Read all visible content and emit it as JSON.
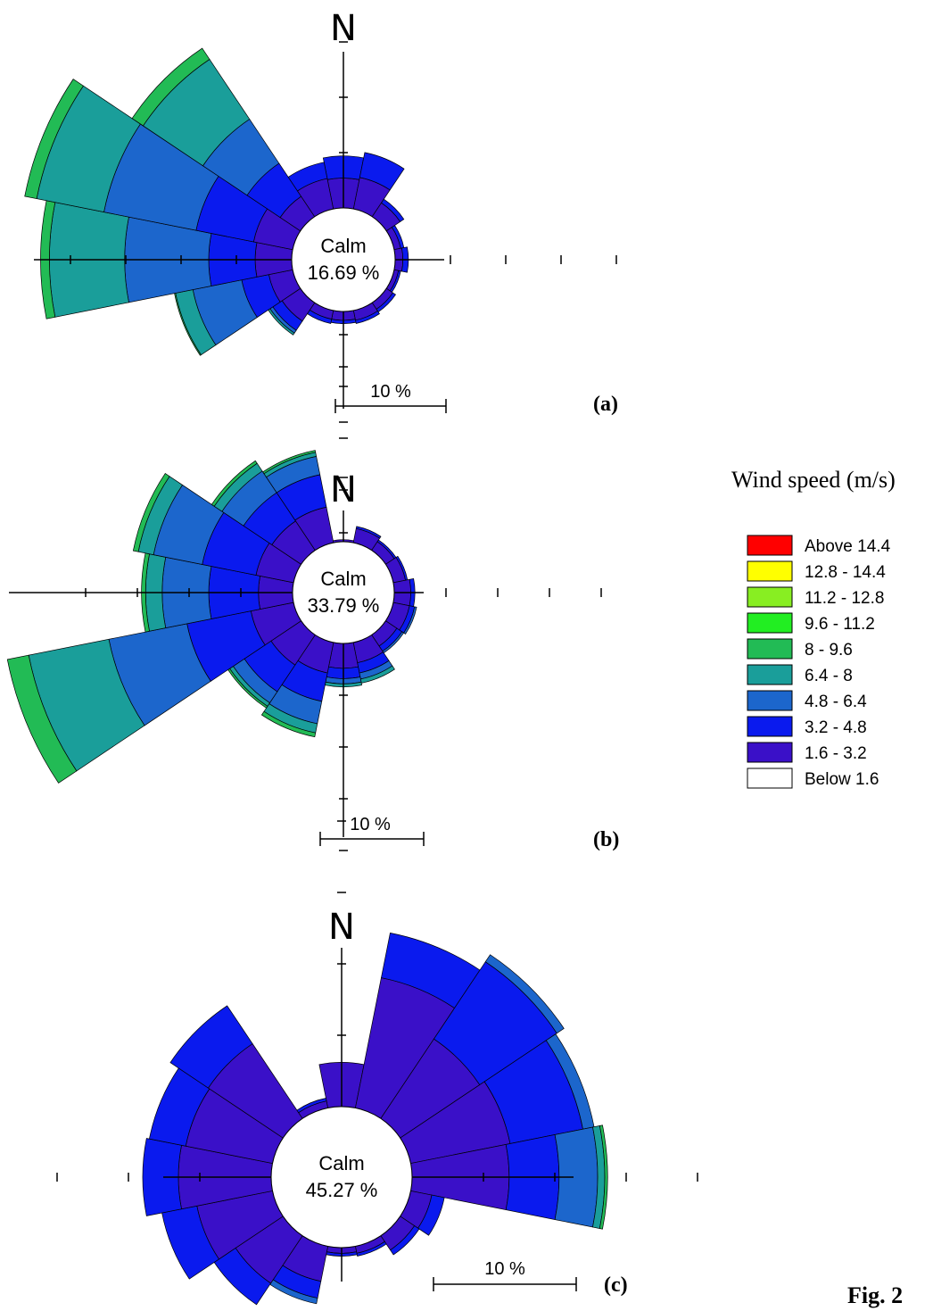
{
  "figure_label": "Fig. 2",
  "legend": {
    "title": "Wind speed (m/s)",
    "items": [
      {
        "label": "Above 14.4",
        "color": "#ff0000"
      },
      {
        "label": "12.8 - 14.4",
        "color": "#ffff00"
      },
      {
        "label": "11.2 - 12.8",
        "color": "#88ee22"
      },
      {
        "label": "9.6 - 11.2",
        "color": "#22ee22"
      },
      {
        "label": "8 - 9.6",
        "color": "#22bb55"
      },
      {
        "label": "6.4 - 8",
        "color": "#1a9e9a"
      },
      {
        "label": "4.8 - 6.4",
        "color": "#1c66cc"
      },
      {
        "label": "3.2 - 4.8",
        "color": "#0a1aee"
      },
      {
        "label": "1.6 - 3.2",
        "color": "#3a10c8"
      },
      {
        "label": "Below 1.6",
        "color": "#ffffff"
      }
    ]
  },
  "chart_data": [
    {
      "type": "windrose",
      "panel": "(a)",
      "north_label": "N",
      "calm_label": "Calm",
      "calm_value": "16.69 %",
      "scale_label": "10 %",
      "unit": "% frequency",
      "directions": [
        "N",
        "NNE",
        "NE",
        "ENE",
        "E",
        "ESE",
        "SE",
        "SSE",
        "S",
        "SSW",
        "SW",
        "WSW",
        "W",
        "WNW",
        "NW",
        "NNW"
      ],
      "bins": [
        "1.6 - 3.2",
        "3.2 - 4.8",
        "4.8 - 6.4",
        "6.4 - 8",
        "8 - 9.6"
      ],
      "series": [
        {
          "direction": "N",
          "values": [
            2.7,
            2.0,
            0,
            0,
            0
          ]
        },
        {
          "direction": "NNE",
          "values": [
            2.9,
            2.3,
            0,
            0,
            0
          ]
        },
        {
          "direction": "NE",
          "values": [
            1.5,
            0.4,
            0,
            0,
            0
          ]
        },
        {
          "direction": "ENE",
          "values": [
            0.6,
            0.3,
            0,
            0,
            0
          ]
        },
        {
          "direction": "E",
          "values": [
            0.7,
            0.5,
            0,
            0,
            0
          ]
        },
        {
          "direction": "ESE",
          "values": [
            0.4,
            0.2,
            0,
            0,
            0
          ]
        },
        {
          "direction": "SE",
          "values": [
            0.7,
            0.3,
            0,
            0,
            0
          ]
        },
        {
          "direction": "SSE",
          "values": [
            0.9,
            0.3,
            0,
            0,
            0
          ]
        },
        {
          "direction": "S",
          "values": [
            0.8,
            0.3,
            0,
            0,
            0
          ]
        },
        {
          "direction": "SSW",
          "values": [
            0.8,
            0.4,
            0,
            0,
            0
          ]
        },
        {
          "direction": "SW",
          "values": [
            2.0,
            1.0,
            0.3,
            0.2,
            0
          ]
        },
        {
          "direction": "WSW",
          "values": [
            2.2,
            2.5,
            4.5,
            1.6,
            0.1
          ]
        },
        {
          "direction": "W",
          "values": [
            3.3,
            4.2,
            7.6,
            6.8,
            0.8
          ]
        },
        {
          "direction": "WNW",
          "values": [
            3.6,
            5.3,
            8.5,
            6.2,
            1.1
          ]
        },
        {
          "direction": "NW",
          "values": [
            2.2,
            3.6,
            4.8,
            6.5,
            1.2
          ]
        },
        {
          "direction": "NNW",
          "values": [
            2.8,
            1.5,
            0,
            0,
            0
          ]
        }
      ]
    },
    {
      "type": "windrose",
      "panel": "(b)",
      "north_label": "N",
      "calm_label": "Calm",
      "calm_value": "33.79 %",
      "scale_label": "10 %",
      "unit": "% frequency",
      "directions": [
        "N",
        "NNE",
        "NE",
        "ENE",
        "E",
        "ESE",
        "SE",
        "SSE",
        "S",
        "SSW",
        "SW",
        "WSW",
        "W",
        "WNW",
        "NW",
        "NNW"
      ],
      "bins": [
        "1.6 - 3.2",
        "3.2 - 4.8",
        "4.8 - 6.4",
        "6.4 - 8",
        "8 - 9.6"
      ],
      "series": [
        {
          "direction": "N",
          "values": [
            0.2,
            0,
            0,
            0,
            0
          ]
        },
        {
          "direction": "NNE",
          "values": [
            1.4,
            0.2,
            0,
            0,
            0
          ]
        },
        {
          "direction": "NE",
          "values": [
            1.0,
            0.2,
            0,
            0,
            0
          ]
        },
        {
          "direction": "ENE",
          "values": [
            1.2,
            0.2,
            0,
            0,
            0
          ]
        },
        {
          "direction": "E",
          "values": [
            1.6,
            0.4,
            0,
            0,
            0
          ]
        },
        {
          "direction": "ESE",
          "values": [
            1.6,
            0.5,
            0.2,
            0,
            0
          ]
        },
        {
          "direction": "SE",
          "values": [
            1.3,
            0.6,
            0.2,
            0,
            0
          ]
        },
        {
          "direction": "SSE",
          "values": [
            2.0,
            1.0,
            0.6,
            0.4,
            0
          ]
        },
        {
          "direction": "S",
          "values": [
            2.4,
            1.0,
            0.5,
            0.3,
            0
          ]
        },
        {
          "direction": "SSW",
          "values": [
            3.0,
            2.8,
            2.2,
            0.9,
            0.4
          ]
        },
        {
          "direction": "SW",
          "values": [
            3.5,
            3.1,
            1.3,
            0.4,
            0.2
          ]
        },
        {
          "direction": "WSW",
          "values": [
            4.2,
            6.3,
            7.7,
            7.9,
            2.1
          ]
        },
        {
          "direction": "W",
          "values": [
            3.3,
            4.8,
            4.5,
            1.6,
            0.4
          ]
        },
        {
          "direction": "WNW",
          "values": [
            3.7,
            5.3,
            4.8,
            1.5,
            0.5
          ]
        },
        {
          "direction": "NW",
          "values": [
            3.4,
            3.3,
            2.5,
            0.9,
            0.3
          ]
        },
        {
          "direction": "NNW",
          "values": [
            3.5,
            3.2,
            1.8,
            0.4,
            0.2
          ]
        }
      ]
    },
    {
      "type": "windrose",
      "panel": "(c)",
      "north_label": "N",
      "calm_label": "Calm",
      "calm_value": "45.27 %",
      "scale_label": "10 %",
      "unit": "% frequency",
      "directions": [
        "N",
        "NNE",
        "NE",
        "ENE",
        "E",
        "ESE",
        "SE",
        "SSE",
        "S",
        "SSW",
        "SW",
        "WSW",
        "W",
        "WNW",
        "NW",
        "NNW"
      ],
      "bins": [
        "1.6 - 3.2",
        "3.2 - 4.8",
        "4.8 - 6.4",
        "6.4 - 8",
        "8 - 9.6"
      ],
      "series": [
        {
          "direction": "N",
          "values": [
            3.1,
            0,
            0,
            0,
            0
          ]
        },
        {
          "direction": "NNE",
          "values": [
            9.3,
            3.2,
            0,
            0,
            0
          ]
        },
        {
          "direction": "NE",
          "values": [
            6.7,
            6.5,
            0.6,
            0,
            0
          ]
        },
        {
          "direction": "ENE",
          "values": [
            7.1,
            5.2,
            0.8,
            0,
            0
          ]
        },
        {
          "direction": "E",
          "values": [
            6.8,
            3.5,
            2.7,
            0.5,
            0.2
          ]
        },
        {
          "direction": "ESE",
          "values": [
            1.5,
            0.9,
            0,
            0,
            0
          ]
        },
        {
          "direction": "SE",
          "values": [
            1.2,
            0.4,
            0,
            0,
            0
          ]
        },
        {
          "direction": "SSE",
          "values": [
            0.5,
            0.2,
            0,
            0,
            0
          ]
        },
        {
          "direction": "S",
          "values": [
            0.4,
            0.2,
            0,
            0,
            0
          ]
        },
        {
          "direction": "SSW",
          "values": [
            2.5,
            1.2,
            0.4,
            0,
            0
          ]
        },
        {
          "direction": "SW",
          "values": [
            4.0,
            1.8,
            0,
            0,
            0
          ]
        },
        {
          "direction": "WSW",
          "values": [
            5.4,
            2.5,
            0,
            0,
            0
          ]
        },
        {
          "direction": "W",
          "values": [
            6.5,
            2.5,
            0,
            0,
            0
          ]
        },
        {
          "direction": "WNW",
          "values": [
            6.2,
            2.6,
            0,
            0,
            0
          ]
        },
        {
          "direction": "NW",
          "values": [
            6.3,
            3.2,
            0,
            0,
            0
          ]
        },
        {
          "direction": "NNW",
          "values": [
            0.5,
            0.2,
            0,
            0,
            0
          ]
        }
      ]
    }
  ]
}
